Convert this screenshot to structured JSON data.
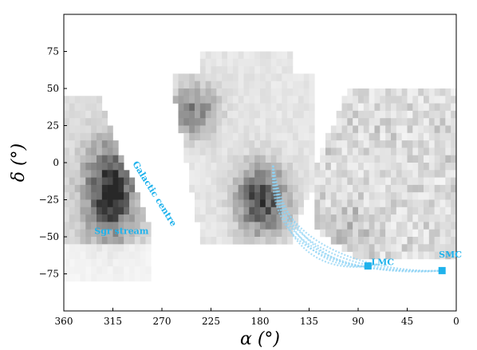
{
  "chart_data": {
    "type": "heatmap",
    "title": "",
    "xlabel": "α (°)",
    "ylabel": "δ (°)",
    "xlim": [
      360,
      0
    ],
    "ylim": [
      -100,
      100
    ],
    "x_ticks": [
      360,
      315,
      270,
      225,
      180,
      135,
      90,
      45,
      0
    ],
    "y_ticks": [
      75,
      50,
      25,
      0,
      -25,
      -50,
      -75
    ],
    "x_tick_labels": [
      "360",
      "315",
      "270",
      "225",
      "180",
      "135",
      "90",
      "45",
      "0"
    ],
    "y_tick_labels": [
      "75",
      "50",
      "25",
      "0",
      "−25",
      "−50",
      "−75"
    ],
    "grid": false,
    "colormap": "greys",
    "annotations": [
      {
        "text": "Sgr stream",
        "x": 332,
        "y": -48,
        "rotation": 0
      },
      {
        "text": "Galactic centre",
        "x": 279,
        "y": -22,
        "rotation": 58
      },
      {
        "text": "LMC",
        "x": 78,
        "y": -69,
        "rotation": 0
      },
      {
        "text": "SMC",
        "x": 16,
        "y": -64,
        "rotation": 0
      }
    ],
    "markers": [
      {
        "name": "LMC",
        "x": 81,
        "y": -69.7,
        "shape": "square",
        "color": "#1fb2ec"
      },
      {
        "name": "SMC",
        "x": 13,
        "y": -72.8,
        "shape": "square",
        "color": "#1fb2ec"
      }
    ],
    "orbit_start": {
      "x": 168,
      "y": -2
    },
    "orbit_color": "#8fd3f4",
    "regions": [
      {
        "x_range": [
          360,
          280
        ],
        "y_range": [
          -80,
          45
        ],
        "density": "high, peak near (320, -25)"
      },
      {
        "x_range": [
          255,
          130
        ],
        "y_range": [
          -50,
          75
        ],
        "density": "high, peak near (175, -25)"
      },
      {
        "x_range": [
          130,
          0
        ],
        "y_range": [
          -65,
          50
        ],
        "density": "low-moderate"
      }
    ]
  }
}
